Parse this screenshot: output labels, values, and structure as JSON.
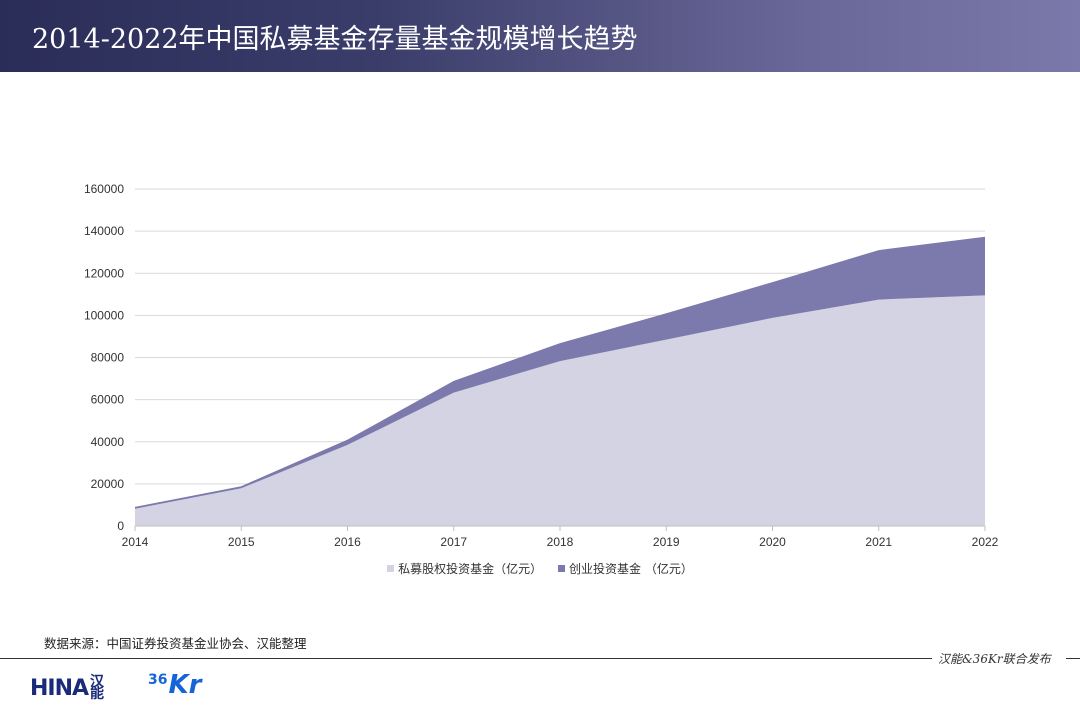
{
  "header": {
    "title": "2014-2022年中国私募基金存量基金规模增长趋势"
  },
  "chart_data": {
    "type": "area",
    "stacked": true,
    "x": [
      "2014",
      "2015",
      "2016",
      "2017",
      "2018",
      "2019",
      "2020",
      "2021",
      "2022"
    ],
    "series": [
      {
        "name": "私募股权投资基金（亿元）",
        "color": "#d4d3e4",
        "values": [
          8200,
          17900,
          38500,
          63300,
          78300,
          88500,
          98800,
          107500,
          109500
        ]
      },
      {
        "name": "创业投资基金 （亿元）",
        "color": "#7c7aac",
        "values": [
          900,
          1000,
          2500,
          5600,
          8500,
          12500,
          17000,
          23500,
          27800
        ]
      }
    ],
    "ylim": [
      0,
      160000
    ],
    "yticks": [
      "0",
      "20000",
      "40000",
      "60000",
      "80000",
      "100000",
      "120000",
      "140000",
      "160000"
    ],
    "grid": true,
    "legend": "bottom"
  },
  "source": "数据来源：中国证券投资基金业协会、汉能整理",
  "publisher": "汉能&36Kr联合发布",
  "logos": {
    "hina_text": "HINA",
    "hina_cn": "汉能",
    "kr_num": "36",
    "kr_text": "Kr"
  }
}
